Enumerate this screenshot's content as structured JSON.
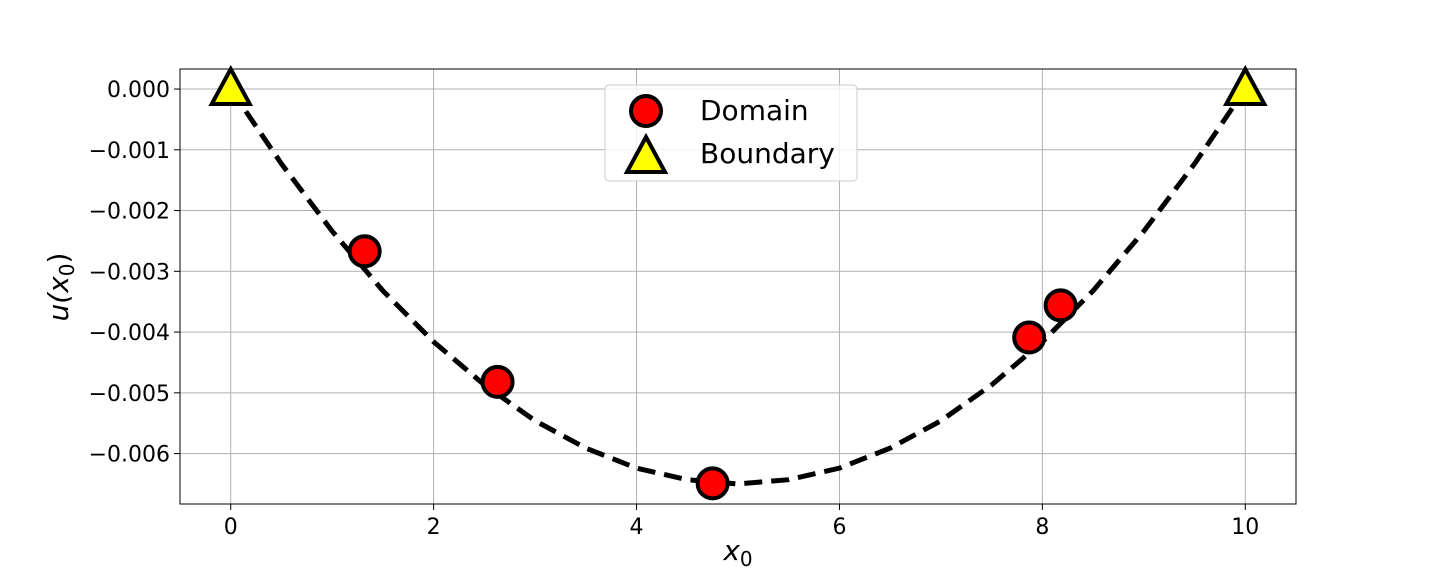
{
  "chart_data": {
    "type": "scatter",
    "title": "",
    "xlabel": {
      "base": "x",
      "sub": "0"
    },
    "ylabel": {
      "base": "u(x",
      "sub": "0",
      "tail": ")"
    },
    "xlim": [
      -0.5,
      10.5
    ],
    "ylim": [
      -0.00683,
      0.00033
    ],
    "grid": true,
    "legend_position": "top-center",
    "x_ticks": [
      0,
      2,
      4,
      6,
      8,
      10
    ],
    "x_tick_labels": [
      "0",
      "2",
      "4",
      "6",
      "8",
      "10"
    ],
    "y_ticks": [
      0.0,
      -0.001,
      -0.002,
      -0.003,
      -0.004,
      -0.005,
      -0.006
    ],
    "y_tick_labels": [
      "0.000",
      "−0.001",
      "−0.002",
      "−0.003",
      "−0.004",
      "−0.005",
      "−0.006"
    ],
    "curve": {
      "style": "dashed",
      "color": "#000000",
      "x": [
        0,
        0.5,
        1,
        1.5,
        2,
        2.5,
        3,
        3.5,
        4,
        4.5,
        5,
        5.5,
        6,
        6.5,
        7,
        7.5,
        8,
        8.5,
        9,
        9.5,
        10
      ],
      "y": [
        0,
        -0.00123,
        -0.00234,
        -0.00332,
        -0.00416,
        -0.00487,
        -0.00546,
        -0.00591,
        -0.00624,
        -0.00643,
        -0.0065,
        -0.00643,
        -0.00624,
        -0.00591,
        -0.00546,
        -0.00487,
        -0.00416,
        -0.00332,
        -0.00234,
        -0.00123,
        0
      ]
    },
    "series": [
      {
        "name": "Domain",
        "marker": "circle",
        "color": "#ff0000",
        "x": [
          1.32,
          2.63,
          4.75,
          7.87,
          8.18
        ],
        "y": [
          -0.00267,
          -0.00482,
          -0.00649,
          -0.00409,
          -0.00356
        ]
      },
      {
        "name": "Boundary",
        "marker": "triangle",
        "color": "#ffff00",
        "x": [
          0,
          10
        ],
        "y": [
          0,
          0
        ]
      }
    ]
  }
}
